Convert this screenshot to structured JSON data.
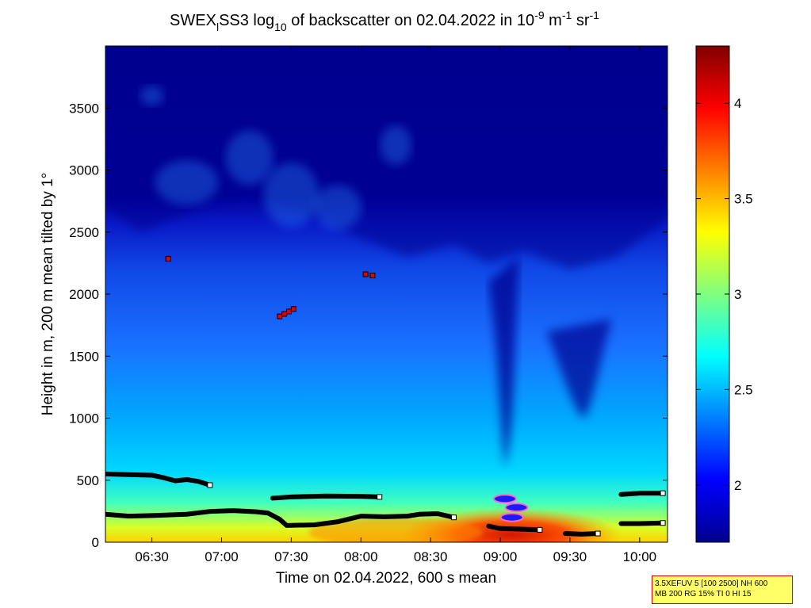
{
  "title": {
    "prefix": "SWEX",
    "sub1": "l",
    "mid": "SS3 log",
    "sub2": "10",
    "rest": " of backscatter on 02.04.2022 in 10",
    "sup1": "-9",
    "m": " m",
    "sup2": "-1",
    "sr": " sr",
    "sup3": "-1"
  },
  "info_box": {
    "line1": "3.5XEFUV 5 [100 2500] NH 600",
    "line2": "MB 200 RG 15% TI 0 HI 15"
  },
  "colors": {
    "background_blue": "#00008f",
    "bar_from": "#00008f",
    "bar_to": "#800000"
  },
  "chart_data": {
    "type": "heatmap",
    "xlabel": "Time on 02.04.2022, 600 s mean",
    "ylabel": "Height in m, 200 m mean tilted by 1°",
    "x_range": [
      "06:10",
      "10:12"
    ],
    "xticks": [
      "06:30",
      "07:00",
      "07:30",
      "08:00",
      "08:30",
      "09:00",
      "09:30",
      "10:00"
    ],
    "ylim": [
      0,
      4000
    ],
    "yticks": [
      0,
      500,
      1000,
      1500,
      2000,
      2500,
      3000,
      3500
    ],
    "colorbar": {
      "range": [
        1.7,
        4.3
      ],
      "ticks": [
        "2",
        "2.5",
        "3",
        "3.5",
        "4"
      ]
    },
    "layers": [
      {
        "name": "upper layer",
        "points": [
          [
            "06:10",
            550
          ],
          [
            "06:20",
            545
          ],
          [
            "06:30",
            540
          ],
          [
            "06:35",
            520
          ],
          [
            "06:40",
            495
          ],
          [
            "06:45",
            505
          ],
          [
            "06:50",
            490
          ],
          [
            "06:55",
            460
          ]
        ]
      },
      {
        "name": "lower layer",
        "points": [
          [
            "06:10",
            225
          ],
          [
            "06:20",
            210
          ],
          [
            "06:30",
            215
          ],
          [
            "06:45",
            225
          ],
          [
            "06:55",
            248
          ],
          [
            "07:05",
            255
          ],
          [
            "07:15",
            245
          ],
          [
            "07:20",
            235
          ],
          [
            "07:25",
            185
          ],
          [
            "07:28",
            135
          ],
          [
            "07:40",
            140
          ],
          [
            "07:50",
            165
          ],
          [
            "08:00",
            210
          ],
          [
            "08:10",
            205
          ],
          [
            "08:20",
            210
          ],
          [
            "08:25",
            225
          ],
          [
            "08:33",
            230
          ],
          [
            "08:40",
            200
          ]
        ]
      },
      {
        "name": "middle layer",
        "points": [
          [
            "07:22",
            355
          ],
          [
            "07:30",
            365
          ],
          [
            "07:45",
            372
          ],
          [
            "08:00",
            370
          ],
          [
            "08:08",
            365
          ]
        ]
      },
      {
        "name": "late lower layer",
        "points": [
          [
            "08:55",
            130
          ],
          [
            "09:00",
            110
          ],
          [
            "09:10",
            105
          ],
          [
            "09:17",
            100
          ]
        ]
      },
      {
        "name": "right upper layer",
        "points": [
          [
            "09:52",
            385
          ],
          [
            "10:00",
            395
          ],
          [
            "10:10",
            395
          ]
        ]
      },
      {
        "name": "right lower layer",
        "points": [
          [
            "09:52",
            150
          ],
          [
            "10:00",
            150
          ],
          [
            "10:10",
            155
          ]
        ]
      },
      {
        "name": "small layer",
        "points": [
          [
            "09:28",
            70
          ],
          [
            "09:35",
            65
          ],
          [
            "09:42",
            70
          ]
        ]
      }
    ],
    "markers": [
      {
        "x": "06:37",
        "y": 2285
      },
      {
        "x": "07:25",
        "y": 1820
      },
      {
        "x": "07:27",
        "y": 1840
      },
      {
        "x": "07:29",
        "y": 1860
      },
      {
        "x": "07:31",
        "y": 1880
      },
      {
        "x": "08:02",
        "y": 2160
      },
      {
        "x": "08:05",
        "y": 2150
      }
    ],
    "fog_features": [
      {
        "x": "09:02",
        "y": 350
      },
      {
        "x": "09:05",
        "y": 200
      },
      {
        "x": "09:07",
        "y": 280
      }
    ]
  }
}
